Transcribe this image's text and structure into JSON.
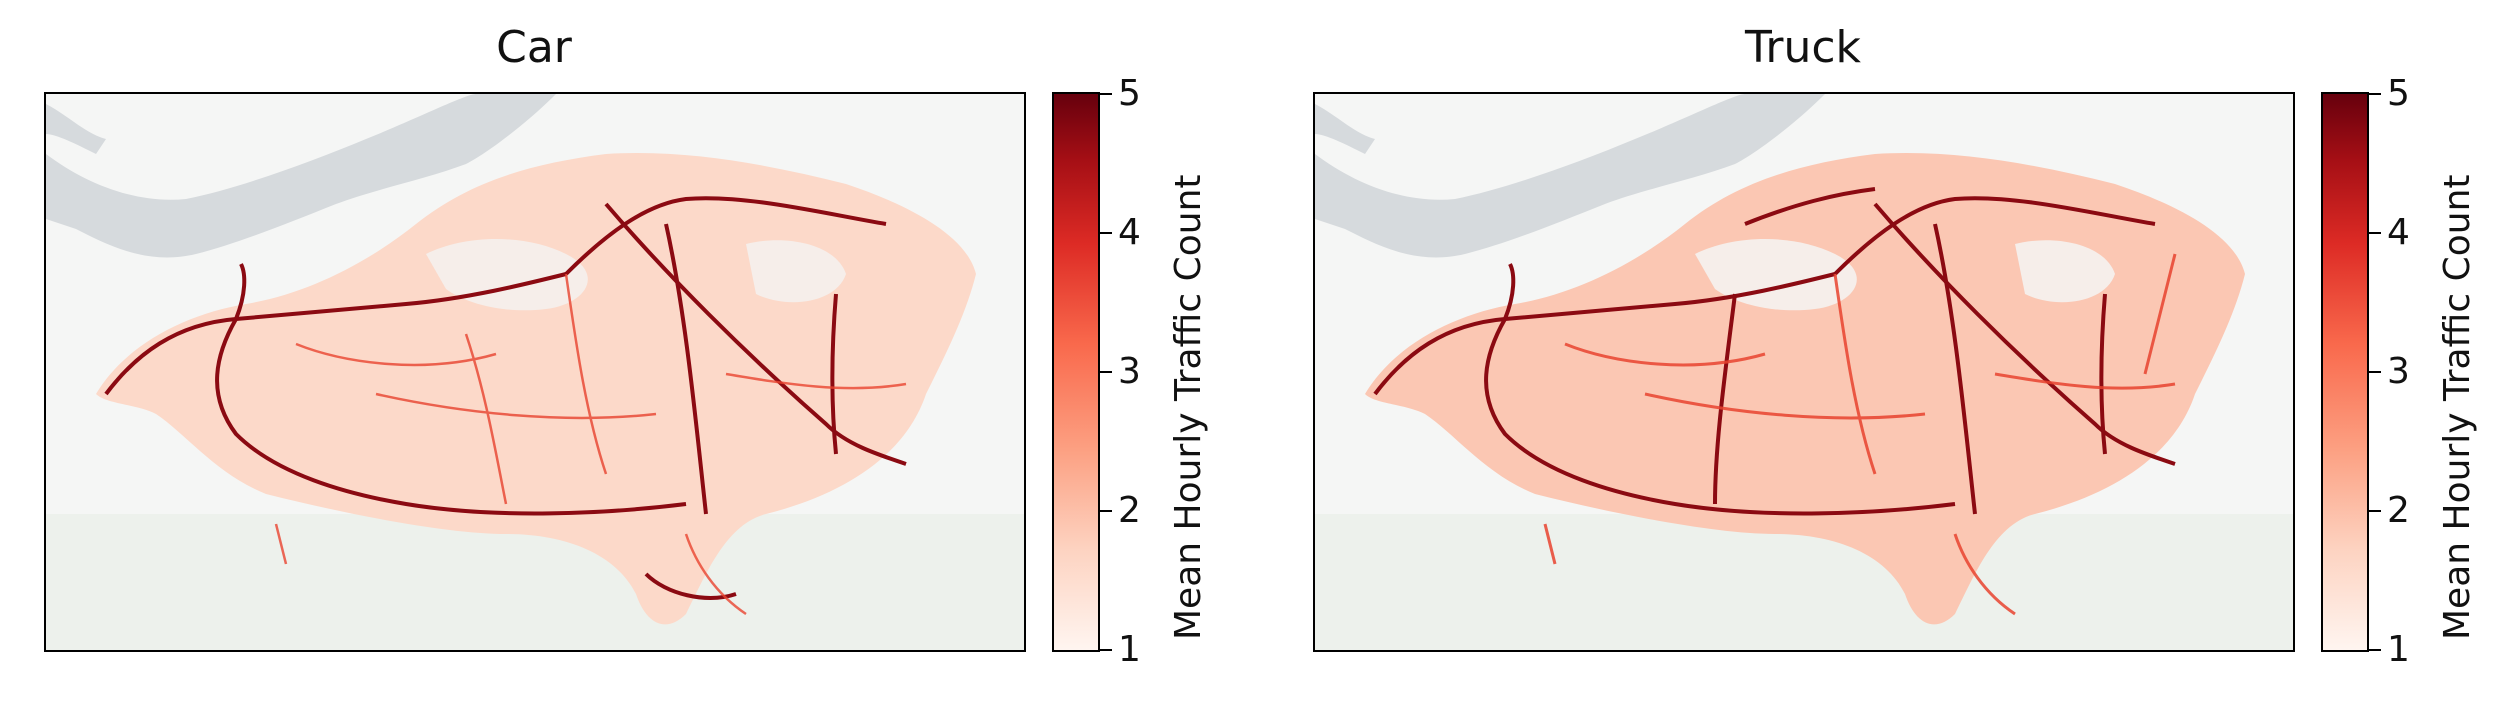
{
  "panels": [
    {
      "title": "Car",
      "colorbar_label": "Mean Hourly Traffic Count",
      "colorbar_ticks": [
        "1",
        "2",
        "3",
        "4",
        "5"
      ]
    },
    {
      "title": "Truck",
      "colorbar_label": "Mean Hourly Traffic Count",
      "colorbar_ticks": [
        "1",
        "2",
        "3",
        "4",
        "5"
      ]
    }
  ],
  "colorbar_range": [
    1,
    5
  ],
  "colormap": [
    "#fff5f0",
    "#fdd3c1",
    "#fca082",
    "#f9694c",
    "#dd2b25",
    "#a60f15",
    "#67000d"
  ],
  "map_colors": {
    "water": "#d6dadd",
    "land": "#f5f6f5",
    "green": "#edf1ec"
  }
}
